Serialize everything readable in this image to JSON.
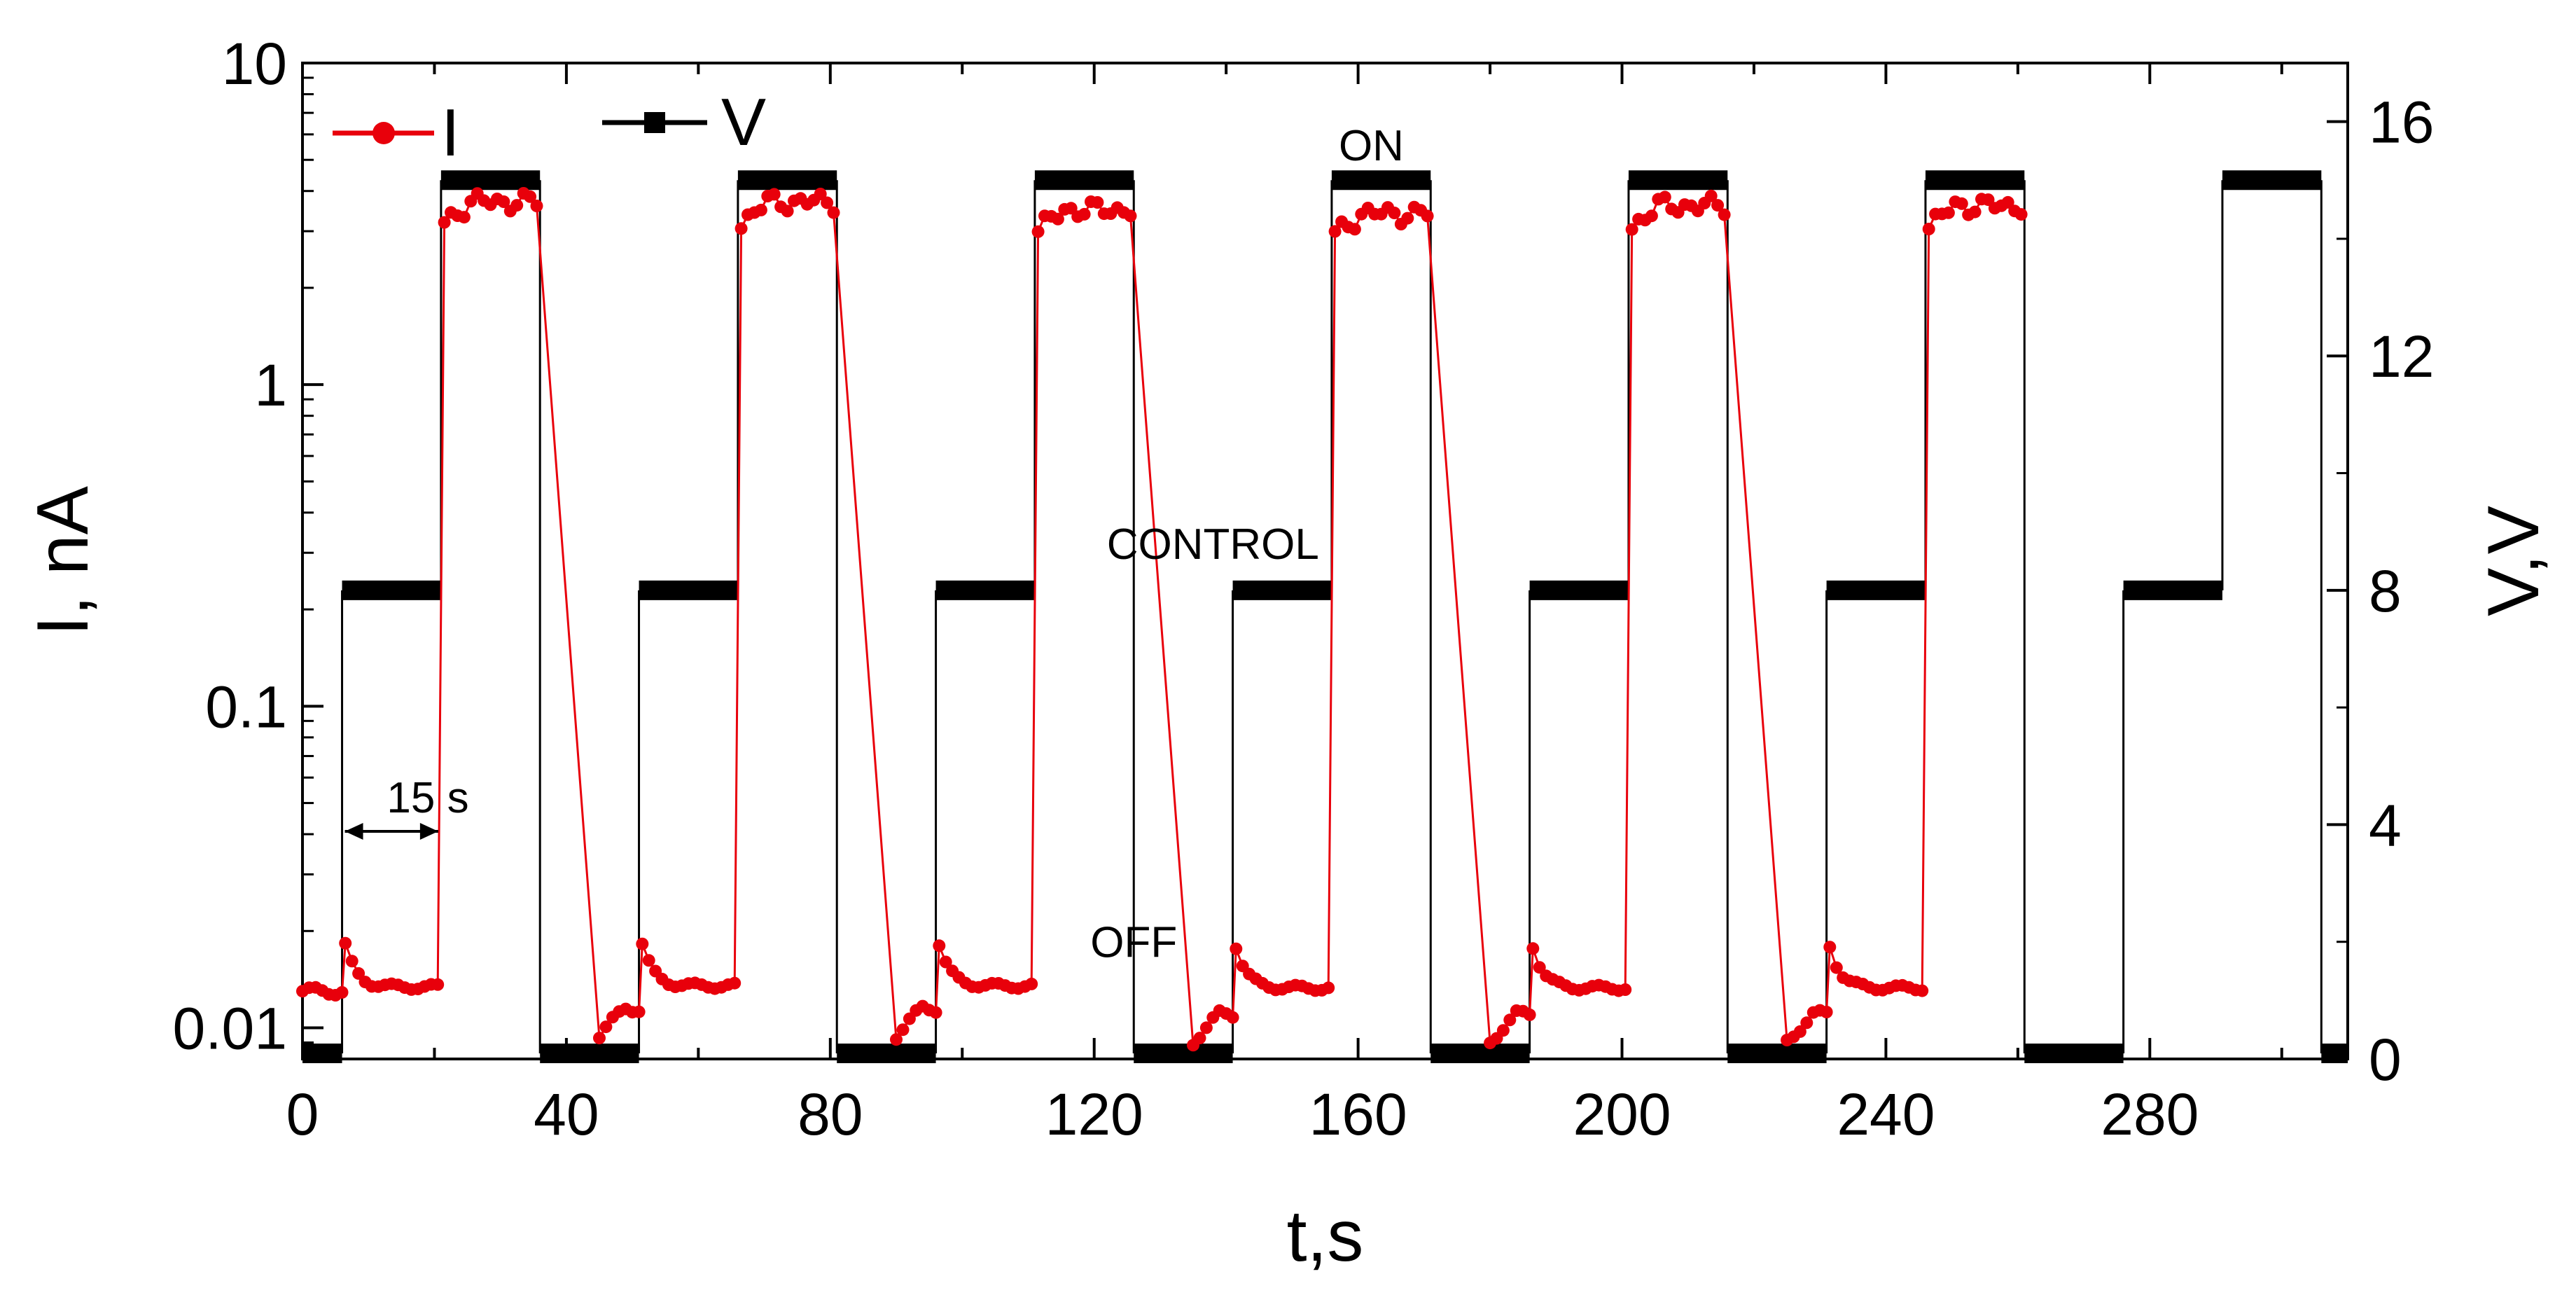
{
  "chart_data": {
    "type": "line",
    "title": "",
    "xlabel": "t,s",
    "ylabel_left": "I, nA",
    "ylabel_right": "V,V",
    "xlim": [
      0,
      310
    ],
    "ylim_left": [
      0.008,
      10
    ],
    "yscale_left": "log",
    "ylim_right": [
      0,
      17
    ],
    "x_ticks": [
      0,
      40,
      80,
      120,
      160,
      200,
      240,
      280
    ],
    "x_tick_labels": [
      "0",
      "40",
      "80",
      "120",
      "160",
      "200",
      "240",
      "280"
    ],
    "y_left_ticks": [
      0.01,
      0.1,
      1,
      10
    ],
    "y_left_tick_labels": [
      "0.01",
      "0.1",
      "1",
      "10"
    ],
    "y_right_ticks": [
      0,
      4,
      8,
      12,
      16
    ],
    "y_right_tick_labels": [
      "0",
      "4",
      "8",
      "12",
      "16"
    ],
    "legend": {
      "placement": "top-left",
      "entries": [
        {
          "name": "I",
          "color": "#e8000b",
          "marker": "circle"
        },
        {
          "name": "V",
          "color": "#000000",
          "marker": "square"
        }
      ]
    },
    "annotations": [
      {
        "text": "ON",
        "x": 162,
        "y_right": 15.6
      },
      {
        "text": "CONTROL",
        "x": 138,
        "y_right": 8.8
      },
      {
        "text": "OFF",
        "x": 126,
        "y_right": 2.0
      },
      {
        "text": "15 s",
        "x": 19,
        "y_left": 0.038,
        "span": [
          6,
          21
        ]
      }
    ],
    "series": [
      {
        "name": "V",
        "axis": "right",
        "color": "#000000",
        "segments": [
          {
            "x": [
              0,
              6
            ],
            "y": 0
          },
          {
            "x": [
              6,
              21
            ],
            "y": 8
          },
          {
            "x": [
              21,
              36
            ],
            "y": 15
          },
          {
            "x": [
              36,
              51
            ],
            "y": 0
          },
          {
            "x": [
              51,
              66
            ],
            "y": 8
          },
          {
            "x": [
              66,
              81
            ],
            "y": 15
          },
          {
            "x": [
              81,
              96
            ],
            "y": 0
          },
          {
            "x": [
              96,
              111
            ],
            "y": 8
          },
          {
            "x": [
              111,
              126
            ],
            "y": 15
          },
          {
            "x": [
              126,
              141
            ],
            "y": 0
          },
          {
            "x": [
              141,
              156
            ],
            "y": 8
          },
          {
            "x": [
              156,
              171
            ],
            "y": 15
          },
          {
            "x": [
              171,
              186
            ],
            "y": 0
          },
          {
            "x": [
              186,
              201
            ],
            "y": 8
          },
          {
            "x": [
              201,
              216
            ],
            "y": 15
          },
          {
            "x": [
              216,
              231
            ],
            "y": 0
          },
          {
            "x": [
              231,
              246
            ],
            "y": 8
          },
          {
            "x": [
              246,
              261
            ],
            "y": 15
          },
          {
            "x": [
              261,
              276
            ],
            "y": 0
          },
          {
            "x": [
              276,
              291
            ],
            "y": 8
          },
          {
            "x": [
              291,
              306
            ],
            "y": 15
          },
          {
            "x": [
              306,
              310
            ],
            "y": 0
          }
        ]
      },
      {
        "name": "I",
        "axis": "left",
        "color": "#e8000b",
        "cycles": [
          {
            "start": 0,
            "i_off": 0.013,
            "i_ctrl": 0.0134,
            "i_on": 3.7
          },
          {
            "start": 45,
            "i_off": 0.0115,
            "i_ctrl": 0.0135,
            "i_on": 3.7
          },
          {
            "start": 90,
            "i_off": 0.0115,
            "i_ctrl": 0.0135,
            "i_on": 3.5
          },
          {
            "start": 135,
            "i_off": 0.011,
            "i_ctrl": 0.0133,
            "i_on": 3.4
          },
          {
            "start": 180,
            "i_off": 0.011,
            "i_ctrl": 0.0133,
            "i_on": 3.6
          },
          {
            "start": 225,
            "i_off": 0.011,
            "i_ctrl": 0.0133,
            "i_on": 3.6
          }
        ],
        "sample_step": 1
      }
    ]
  }
}
